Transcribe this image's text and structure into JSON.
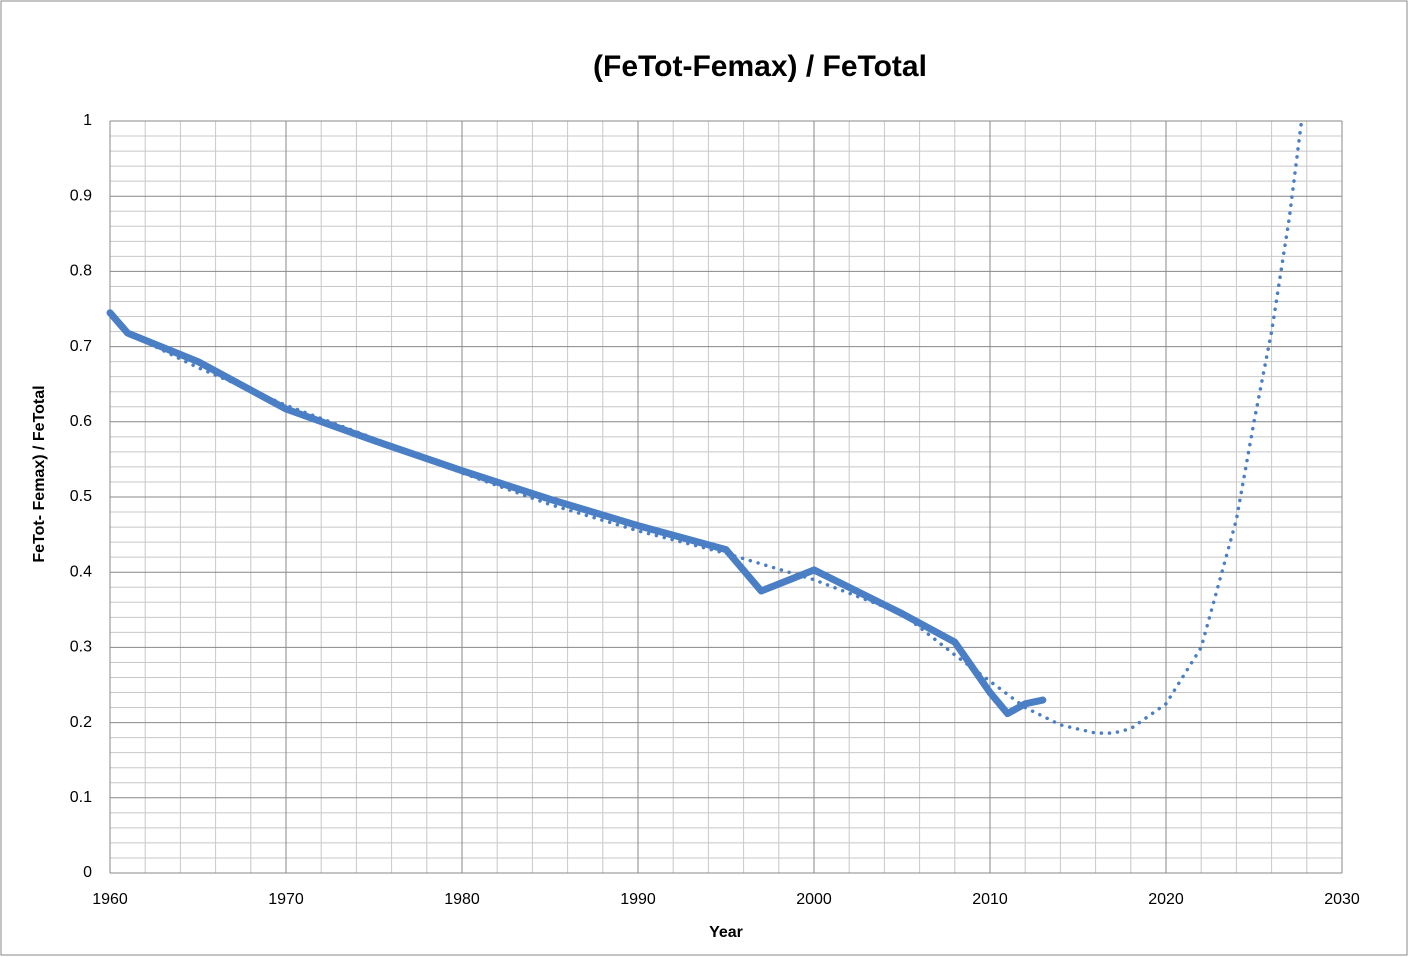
{
  "chart_data": {
    "type": "line",
    "title": "(FeTot-Femax) / FeTotal",
    "x_label": "Year",
    "y_label": "FeTot- Femax) / FeTotal",
    "xlim": [
      1960,
      2030
    ],
    "xticks": [
      1960,
      1970,
      1980,
      1990,
      2000,
      2010,
      2020,
      2030
    ],
    "ylim": [
      0,
      1
    ],
    "yticks": [
      0,
      0.1,
      0.2,
      0.3,
      0.4,
      0.5,
      0.6,
      0.7,
      0.8,
      0.9,
      1
    ],
    "grid": true,
    "minor_grid_divisions": 5,
    "series": [
      {
        "color": "#4a7ec5",
        "style": "solid",
        "x": [
          1960,
          1961,
          1965,
          1970,
          1975,
          1980,
          1985,
          1990,
          1995,
          1997,
          2000,
          2005,
          2008,
          2010,
          2011,
          2012,
          2013
        ],
        "values": [
          0.745,
          0.718,
          0.68,
          0.617,
          0.575,
          0.535,
          0.497,
          0.462,
          0.43,
          0.375,
          0.403,
          0.345,
          0.307,
          0.24,
          0.212,
          0.225,
          0.23
        ]
      },
      {
        "color": "#4a7ec5",
        "style": "dotted",
        "x": [
          1961,
          1965,
          1970,
          1975,
          1980,
          1985,
          1990,
          1995,
          2000,
          2005,
          2008,
          2010,
          2012,
          2014,
          2016,
          2017,
          2018,
          2020,
          2022,
          2024,
          2025,
          2026,
          2027,
          2027.7
        ],
        "values": [
          0.718,
          0.672,
          0.622,
          0.578,
          0.532,
          0.49,
          0.455,
          0.425,
          0.39,
          0.345,
          0.29,
          0.255,
          0.22,
          0.197,
          0.186,
          0.186,
          0.192,
          0.225,
          0.3,
          0.47,
          0.6,
          0.72,
          0.87,
          1.0
        ]
      }
    ]
  }
}
